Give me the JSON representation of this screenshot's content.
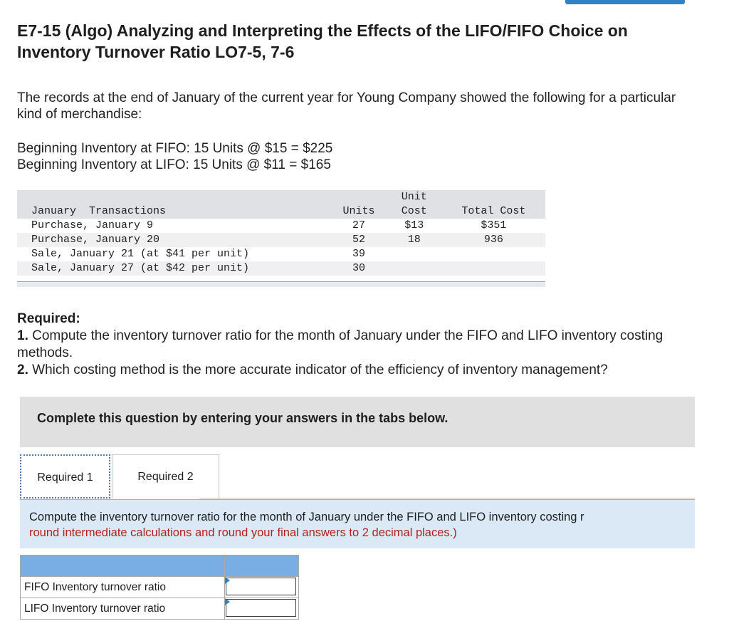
{
  "title": "E7-15 (Algo) Analyzing and Interpreting the Effects of the LIFO/FIFO Choice on Inventory Turnover Ratio LO7-5, 7-6",
  "intro": "The records at the end of January of the current year for Young Company showed the following for a particular kind of merchandise:",
  "beginning": {
    "fifo": "Beginning Inventory at FIFO: 15 Units @ $15 = $225",
    "lifo": "Beginning Inventory at LIFO: 15 Units @ $11 = $165"
  },
  "transactions": {
    "headers": {
      "desc": "January  Transactions",
      "units": "Units",
      "unit_cost_top": "Unit",
      "unit_cost": "Cost",
      "total_cost": "Total Cost"
    },
    "rows": [
      {
        "desc": "Purchase, January 9",
        "units": "27",
        "unit_cost": "$13",
        "total_cost": "$351"
      },
      {
        "desc": "Purchase, January 20",
        "units": "52",
        "unit_cost": "18",
        "total_cost": "936"
      },
      {
        "desc": "Sale, January 21 (at $41 per unit)",
        "units": "39",
        "unit_cost": "",
        "total_cost": ""
      },
      {
        "desc": "Sale, January 27 (at $42 per unit)",
        "units": "30",
        "unit_cost": "",
        "total_cost": ""
      }
    ]
  },
  "required": {
    "heading": "Required:",
    "item1_num": "1.",
    "item1": "Compute the inventory turnover ratio for the month of January under the FIFO and LIFO inventory costing methods.",
    "item2_num": "2.",
    "item2": "Which costing method is the more accurate indicator of the efficiency of inventory management?"
  },
  "complete_banner": "Complete this question by entering your answers in the tabs below.",
  "tabs": [
    {
      "label": "Required 1",
      "active": true
    },
    {
      "label": "Required 2",
      "active": false
    }
  ],
  "instruction": {
    "line1": "Compute the inventory turnover ratio for the month of January under the FIFO and LIFO inventory costing r",
    "line2": "round intermediate calculations and round your final answers to 2 decimal places.)"
  },
  "answer_table": {
    "rows": [
      {
        "label": "FIFO Inventory turnover ratio",
        "value": ""
      },
      {
        "label": "LIFO Inventory turnover ratio",
        "value": ""
      }
    ]
  },
  "colors": {
    "accent": "#2d83c6",
    "answer_header": "#78aee3",
    "instruction_bg": "#dbe9f7",
    "warning_text": "#b3201e"
  }
}
